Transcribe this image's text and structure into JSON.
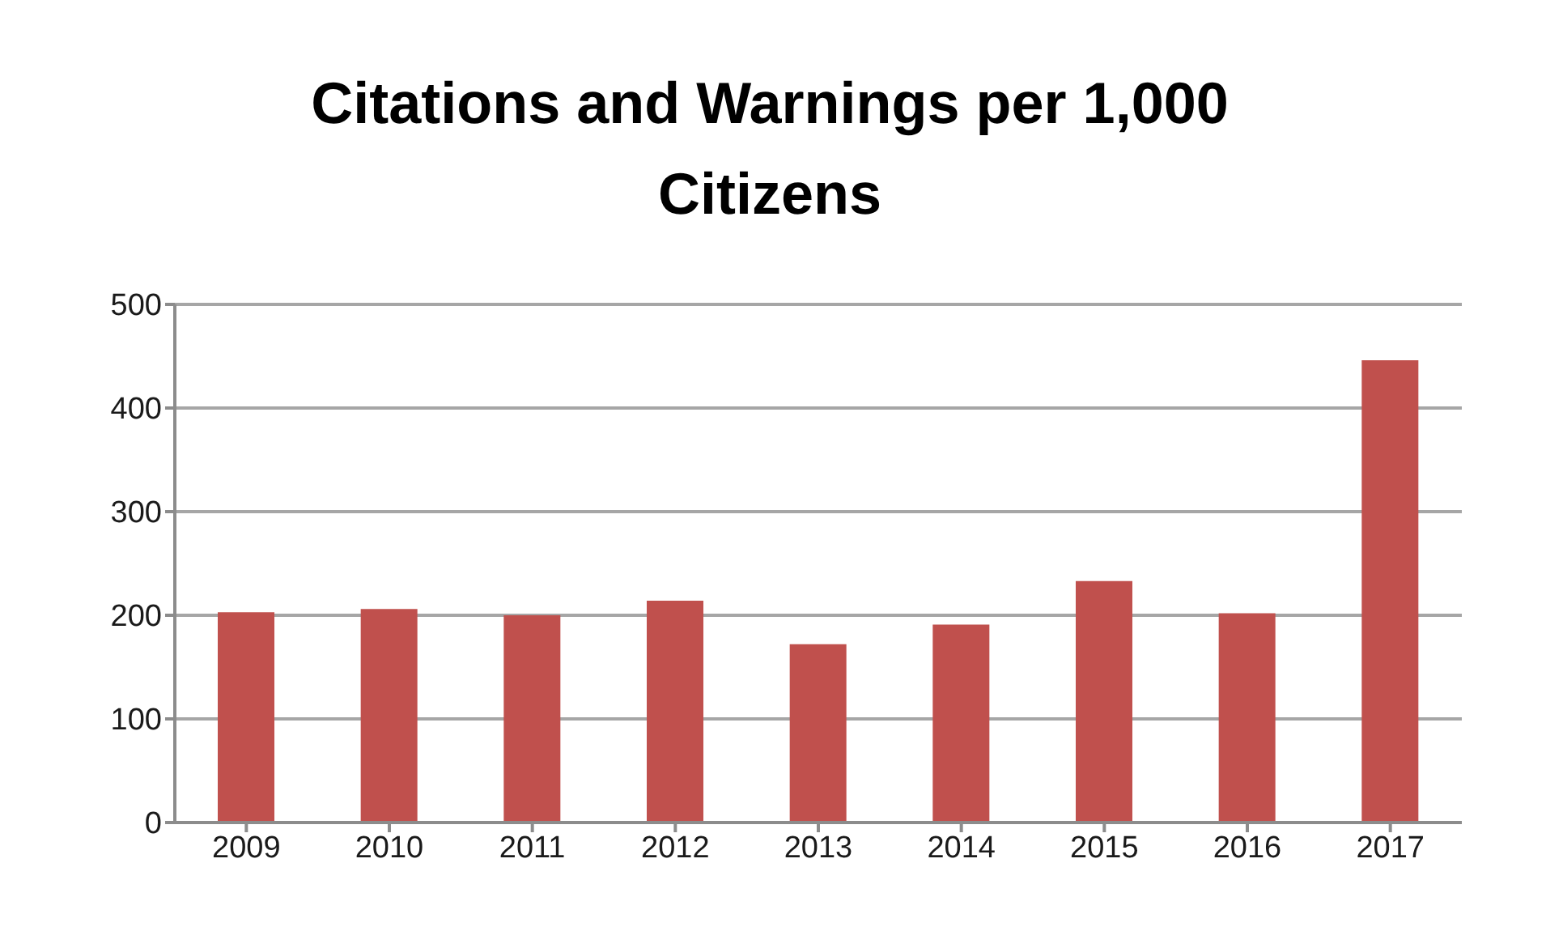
{
  "chart_data": {
    "type": "bar",
    "title": "Citations and Warnings per 1,000 Citizens",
    "categories": [
      "2009",
      "2010",
      "2011",
      "2012",
      "2013",
      "2014",
      "2015",
      "2016",
      "2017"
    ],
    "values": [
      203,
      206,
      200,
      214,
      172,
      191,
      233,
      202,
      446
    ],
    "color": "#c0504d",
    "ylim": [
      0,
      500
    ],
    "yticks": [
      0,
      100,
      200,
      300,
      400,
      500
    ],
    "grid": "y"
  }
}
